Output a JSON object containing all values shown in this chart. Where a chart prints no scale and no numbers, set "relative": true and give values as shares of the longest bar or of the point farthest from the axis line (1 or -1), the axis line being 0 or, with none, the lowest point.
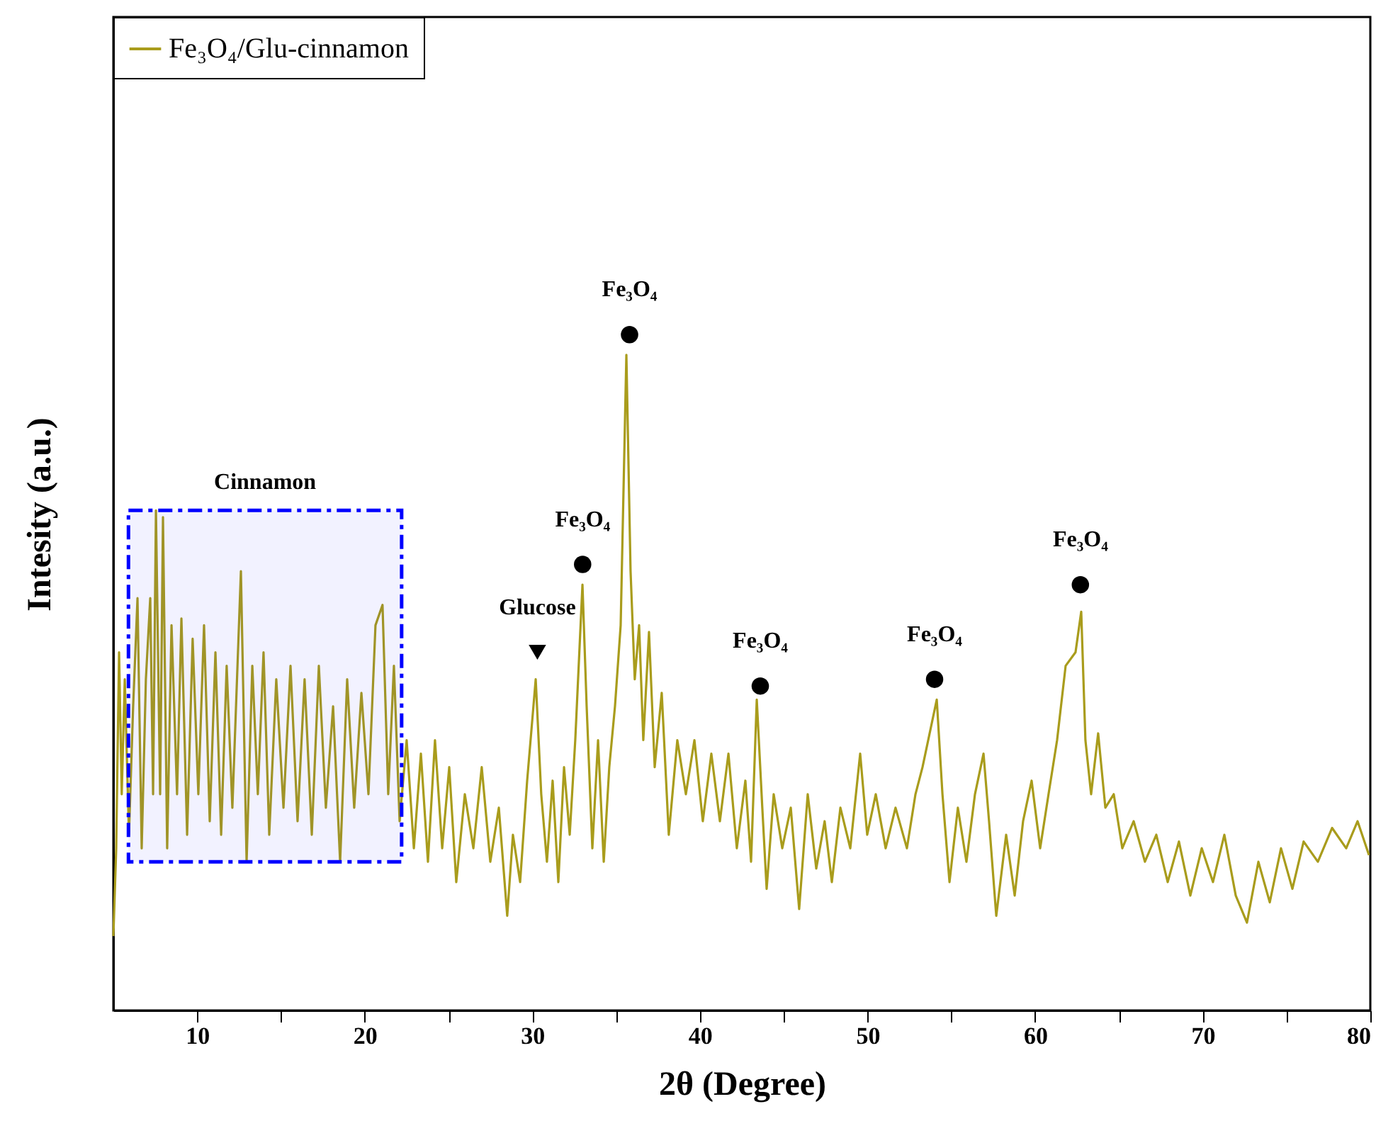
{
  "chart_data": {
    "type": "line",
    "relative": true,
    "xlabel": "2θ (Degree)",
    "ylabel": "Intesity (a.u.)",
    "xlim": [
      5,
      80
    ],
    "xticks": [
      10,
      {
        "value": 15,
        "label": null
      },
      20,
      {
        "value": 25,
        "label": null
      },
      30,
      {
        "value": 35,
        "label": null
      },
      40,
      {
        "value": 45,
        "label": null
      },
      50,
      {
        "value": 55,
        "label": null
      },
      60,
      {
        "value": 65,
        "label": null
      },
      70,
      {
        "value": 75,
        "label": null
      },
      80
    ],
    "legend": "top left",
    "series": [
      {
        "name": "Fe₃O₄/Glu-cinnamon",
        "color": "#a99c1c",
        "x": [
          5.0,
          5.17,
          5.34,
          5.5,
          5.68,
          5.93,
          6.18,
          6.44,
          6.69,
          6.94,
          7.2,
          7.37,
          7.54,
          7.79,
          7.96,
          8.21,
          8.47,
          8.8,
          9.06,
          9.4,
          9.73,
          10.07,
          10.41,
          10.75,
          11.09,
          11.43,
          11.76,
          12.1,
          12.61,
          12.95,
          13.29,
          13.62,
          13.96,
          14.3,
          14.72,
          15.15,
          15.57,
          15.99,
          16.41,
          16.84,
          17.26,
          17.68,
          18.11,
          18.53,
          18.95,
          19.37,
          19.8,
          20.22,
          20.64,
          21.06,
          21.4,
          21.74,
          22.08,
          22.5,
          22.93,
          23.35,
          23.77,
          24.19,
          24.62,
          25.04,
          25.46,
          25.97,
          26.48,
          26.98,
          27.49,
          28.0,
          28.5,
          28.84,
          29.27,
          29.69,
          30.2,
          30.53,
          30.87,
          31.21,
          31.55,
          31.89,
          32.23,
          32.56,
          32.99,
          33.24,
          33.58,
          33.92,
          34.26,
          34.59,
          34.93,
          35.27,
          35.61,
          35.86,
          36.11,
          36.37,
          36.62,
          36.96,
          37.3,
          37.72,
          38.14,
          38.65,
          39.16,
          39.67,
          40.17,
          40.68,
          41.19,
          41.7,
          42.2,
          42.71,
          43.05,
          43.39,
          43.72,
          43.98,
          44.4,
          44.91,
          45.42,
          45.92,
          46.43,
          46.94,
          47.44,
          47.87,
          48.38,
          48.97,
          49.56,
          49.98,
          50.49,
          51.08,
          51.67,
          52.35,
          52.86,
          53.28,
          54.13,
          54.47,
          54.89,
          55.39,
          55.9,
          56.41,
          56.92,
          57.25,
          57.68,
          58.27,
          58.78,
          59.28,
          59.79,
          60.3,
          60.8,
          61.31,
          61.82,
          62.41,
          62.75,
          63.0,
          63.34,
          63.76,
          64.19,
          64.69,
          65.2,
          65.88,
          66.55,
          67.23,
          67.91,
          68.58,
          69.26,
          69.94,
          70.61,
          71.29,
          71.97,
          72.64,
          73.32,
          74.0,
          74.67,
          75.35,
          76.02,
          76.87,
          77.72,
          78.56,
          79.24,
          79.92
        ],
        "values": [
          0.11,
          0.24,
          0.53,
          0.32,
          0.49,
          0.26,
          0.45,
          0.61,
          0.24,
          0.49,
          0.61,
          0.32,
          0.74,
          0.32,
          0.73,
          0.24,
          0.57,
          0.32,
          0.58,
          0.26,
          0.55,
          0.32,
          0.57,
          0.28,
          0.53,
          0.26,
          0.51,
          0.3,
          0.65,
          0.22,
          0.51,
          0.32,
          0.53,
          0.26,
          0.49,
          0.3,
          0.51,
          0.28,
          0.49,
          0.26,
          0.51,
          0.3,
          0.45,
          0.22,
          0.49,
          0.3,
          0.47,
          0.32,
          0.57,
          0.6,
          0.32,
          0.51,
          0.28,
          0.4,
          0.24,
          0.38,
          0.22,
          0.4,
          0.24,
          0.36,
          0.19,
          0.32,
          0.24,
          0.36,
          0.22,
          0.3,
          0.14,
          0.26,
          0.19,
          0.34,
          0.49,
          0.32,
          0.22,
          0.34,
          0.19,
          0.36,
          0.26,
          0.4,
          0.63,
          0.45,
          0.24,
          0.4,
          0.22,
          0.36,
          0.45,
          0.57,
          0.97,
          0.65,
          0.49,
          0.57,
          0.4,
          0.56,
          0.36,
          0.47,
          0.26,
          0.4,
          0.32,
          0.4,
          0.28,
          0.38,
          0.28,
          0.38,
          0.24,
          0.34,
          0.22,
          0.46,
          0.3,
          0.18,
          0.32,
          0.24,
          0.3,
          0.15,
          0.32,
          0.21,
          0.28,
          0.19,
          0.3,
          0.24,
          0.38,
          0.26,
          0.32,
          0.24,
          0.3,
          0.24,
          0.32,
          0.36,
          0.46,
          0.32,
          0.19,
          0.3,
          0.22,
          0.32,
          0.38,
          0.28,
          0.14,
          0.26,
          0.17,
          0.28,
          0.34,
          0.24,
          0.32,
          0.4,
          0.51,
          0.53,
          0.59,
          0.4,
          0.32,
          0.41,
          0.3,
          0.32,
          0.24,
          0.28,
          0.22,
          0.26,
          0.19,
          0.25,
          0.17,
          0.24,
          0.19,
          0.26,
          0.17,
          0.13,
          0.22,
          0.16,
          0.24,
          0.18,
          0.25,
          0.22,
          0.27,
          0.24,
          0.28,
          0.23
        ]
      },
      {
        "type": "scatter",
        "color": "#000000",
        "marker": "circle",
        "x": [
          33.0,
          35.8,
          43.6,
          54.0,
          62.7
        ],
        "values": [
          0.66,
          1.0,
          0.48,
          0.49,
          0.63
        ]
      },
      {
        "type": "scatter",
        "color": "#000000",
        "marker": "triangle",
        "x": [
          30.3
        ],
        "values": [
          0.53
        ]
      }
    ],
    "annotations": [
      {
        "text": "Fe₃O₄",
        "x": 33.0,
        "y": 0.66
      },
      {
        "text": "Fe₃O₄",
        "x": 35.8,
        "y": 1.0
      },
      {
        "text": "Fe₃O₄",
        "x": 43.6,
        "y": 0.48
      },
      {
        "text": "Fe₃O₄",
        "x": 54.0,
        "y": 0.49
      },
      {
        "text": "Fe₃O₄",
        "x": 62.7,
        "y": 0.63
      },
      {
        "text": "Glucose",
        "x": 30.3,
        "y": 0.53
      }
    ],
    "bands": [
      {
        "axis": "x",
        "from": 5.9,
        "to": 22.2,
        "label": "Cinnamon",
        "color": "#0000ff"
      }
    ]
  }
}
